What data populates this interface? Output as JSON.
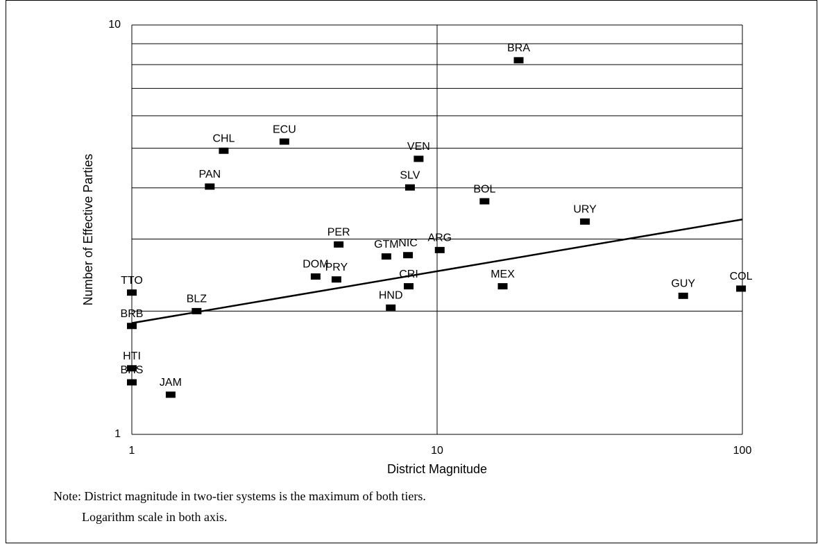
{
  "chart_data": {
    "type": "scatter",
    "xlabel": "District Magnitude",
    "ylabel": "Number of Effective Parties",
    "xlog": true,
    "ylog": true,
    "grid": true,
    "xlim": [
      1,
      100
    ],
    "ylim": [
      1,
      10
    ],
    "xticks": [
      1,
      10,
      100
    ],
    "yticks": [
      1,
      10
    ],
    "ygrid": [
      2,
      3,
      4,
      5,
      6,
      7,
      8,
      9
    ],
    "color": "#000000",
    "labels": [
      "BRA",
      "ECU",
      "CHL",
      "VEN",
      "PAN",
      "SLV",
      "BOL",
      "URY",
      "PER",
      "ARG",
      "NIC",
      "GTM",
      "DOM",
      "PRY",
      "CRI",
      "MEX",
      "COL",
      "GUY",
      "TTO",
      "HND",
      "BLZ",
      "BRB",
      "HTI",
      "BHS",
      "JAM"
    ],
    "x": [
      18.5,
      3.16,
      2.0,
      8.7,
      1.8,
      8.15,
      14.3,
      30.5,
      4.76,
      10.2,
      8.03,
      6.82,
      4.0,
      4.68,
      8.07,
      16.4,
      99,
      64,
      1,
      7.05,
      1.63,
      1,
      1,
      1,
      1.34
    ],
    "values": [
      8.2,
      5.19,
      4.93,
      4.71,
      4.03,
      4.01,
      3.71,
      3.31,
      2.91,
      2.82,
      2.74,
      2.72,
      2.43,
      2.39,
      2.3,
      2.3,
      2.27,
      2.18,
      2.22,
      2.04,
      2.0,
      1.84,
      1.45,
      1.34,
      1.25
    ],
    "trendline": {
      "x": [
        1,
        100
      ],
      "values": [
        1.87,
        3.35
      ]
    },
    "notes": [
      "Note: District magnitude in two-tier systems is the maximum of  both tiers.",
      "Logarithm scale in both axis."
    ]
  }
}
